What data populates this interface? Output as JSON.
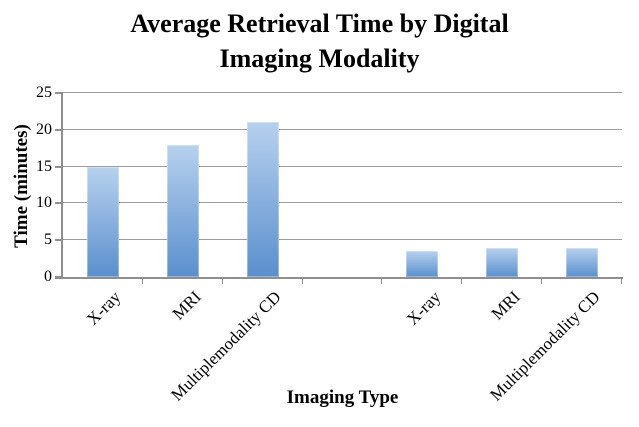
{
  "header": {
    "title_line1": "Average Retrieval Time by Digital",
    "title_line2": "Imaging Modality"
  },
  "chart_data": {
    "type": "bar",
    "title": "Average Retrieval Time by Digital Imaging Modality",
    "xlabel": "Imaging Type",
    "ylabel": "Time (minutes)",
    "ylim": [
      0,
      25
    ],
    "yticks": [
      0,
      5,
      10,
      15,
      20,
      25
    ],
    "grid": true,
    "legend": false,
    "gridline_color": "#9d9d9d",
    "axis_color": "#8f8f8f",
    "bar_colors": {
      "top": "#b7d1ee",
      "bottom": "#5a8fcd"
    },
    "slots": [
      {
        "label": "X-ray",
        "value": 15
      },
      {
        "label": "MRI",
        "value": 18
      },
      {
        "label": "Multiplemodality CD",
        "value": 21
      },
      {
        "label": "",
        "value": null
      },
      {
        "label": "X-ray",
        "value": 3.5
      },
      {
        "label": "MRI",
        "value": 4
      },
      {
        "label": "Multiplemodality CD",
        "value": 4
      }
    ]
  }
}
